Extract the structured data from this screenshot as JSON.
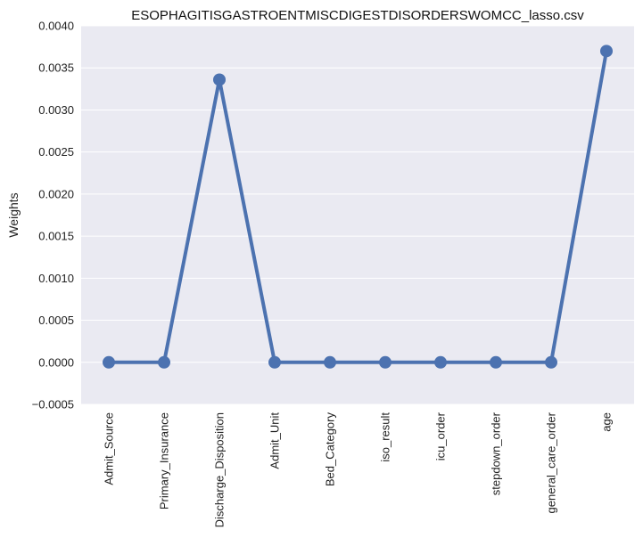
{
  "chart_data": {
    "type": "line",
    "title": "ESOPHAGITISGASTROENTMISCDIGESTDISORDERSWOMCC_lasso.csv",
    "xlabel": "",
    "ylabel": "Weights",
    "categories": [
      "Admit_Source",
      "Primary_Insurance",
      "Discharge_Disposition",
      "Admit_Unit",
      "Bed_Category",
      "iso_result",
      "icu_order",
      "stepdown_order",
      "general_care_order",
      "age"
    ],
    "values": [
      0.0,
      0.0,
      0.00336,
      0.0,
      0.0,
      0.0,
      0.0,
      0.0,
      0.0,
      0.0037
    ],
    "ylim": [
      -0.0005,
      0.004
    ],
    "yticks": [
      "−0.0005",
      "0.0000",
      "0.0005",
      "0.0010",
      "0.0015",
      "0.0020",
      "0.0025",
      "0.0030",
      "0.0035",
      "0.0040"
    ],
    "ytick_values": [
      -0.0005,
      0.0,
      0.0005,
      0.001,
      0.0015,
      0.002,
      0.0025,
      0.003,
      0.0035,
      0.004
    ],
    "grid": true,
    "colors": {
      "line": "#4c72b0",
      "background": "#eaeaf2",
      "grid": "#ffffff"
    }
  }
}
